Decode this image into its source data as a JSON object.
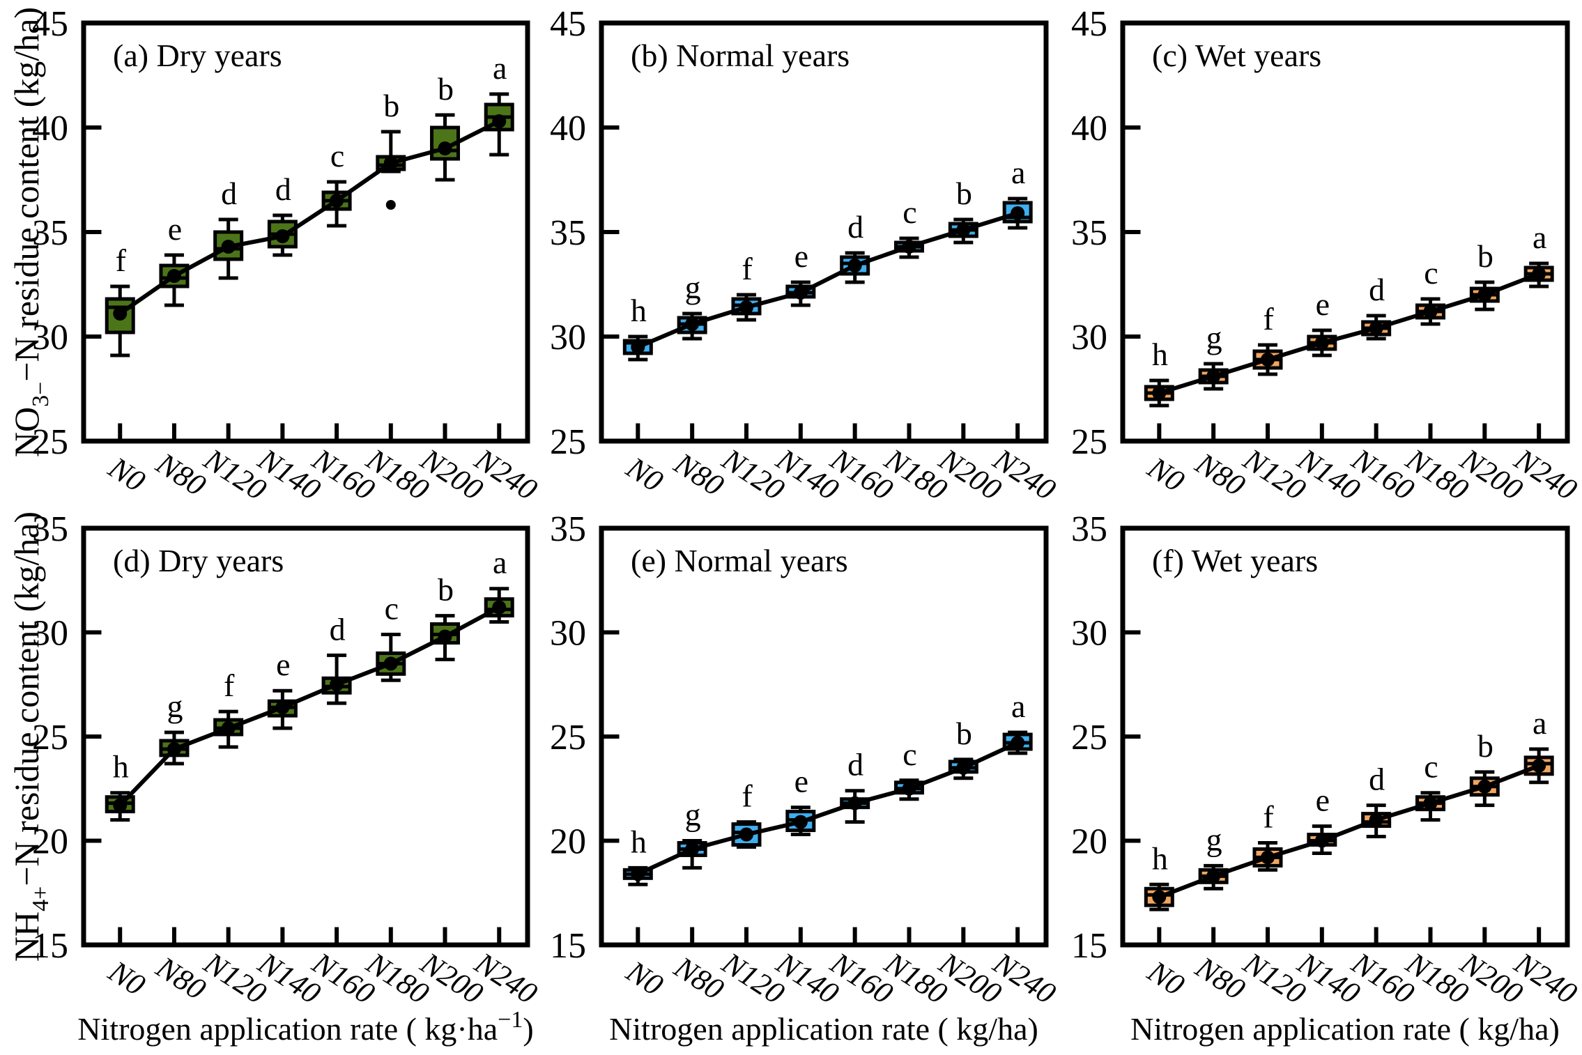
{
  "figure": {
    "background": "#ffffff",
    "categories": [
      "N0",
      "N80",
      "N120",
      "N140",
      "N160",
      "N180",
      "N200",
      "N240"
    ],
    "ink_color": "#000000",
    "group_colors": {
      "dry": "#4C7519",
      "normal": "#3FAFF0",
      "wet": "#F2A55F"
    }
  },
  "chart_data": [
    {
      "id": "a",
      "type": "box",
      "title": "(a) Dry years",
      "box_color": "#4C7519",
      "ylim": [
        25,
        45
      ],
      "yticks": [
        25,
        30,
        35,
        40,
        45
      ],
      "ylabel_parts": [
        {
          "t": "NO"
        },
        {
          "t": "3−",
          "sub": true
        },
        {
          "t": "−N residue content (kg/ha)"
        }
      ],
      "xlabel_parts": null,
      "categories": [
        "N0",
        "N80",
        "N120",
        "N140",
        "N160",
        "N180",
        "N200",
        "N240"
      ],
      "letters": [
        "f",
        "e",
        "d",
        "d",
        "c",
        "b",
        "b",
        "a"
      ],
      "mean": [
        31.1,
        32.9,
        34.3,
        34.8,
        36.5,
        38.3,
        39.0,
        40.3
      ],
      "median": [
        31.4,
        32.8,
        34.2,
        34.9,
        36.5,
        38.2,
        38.9,
        40.5
      ],
      "q1": [
        30.2,
        32.4,
        33.7,
        34.3,
        36.1,
        38.0,
        38.5,
        39.9
      ],
      "q3": [
        31.8,
        33.4,
        35.0,
        35.5,
        36.9,
        38.6,
        40.0,
        41.1
      ],
      "whisker_low": [
        29.1,
        31.5,
        32.8,
        33.9,
        35.3,
        37.9,
        37.5,
        38.7
      ],
      "whisker_high": [
        32.4,
        33.9,
        35.6,
        35.8,
        37.4,
        39.8,
        40.6,
        41.6
      ],
      "outliers": [
        {
          "category": "N180",
          "value": 36.3
        }
      ]
    },
    {
      "id": "b",
      "type": "box",
      "title": "(b) Normal years",
      "box_color": "#3FAFF0",
      "ylim": [
        25,
        45
      ],
      "yticks": [
        25,
        30,
        35,
        40,
        45
      ],
      "ylabel_parts": null,
      "xlabel_parts": null,
      "categories": [
        "N0",
        "N80",
        "N120",
        "N140",
        "N160",
        "N180",
        "N200",
        "N240"
      ],
      "letters": [
        "h",
        "g",
        "f",
        "e",
        "d",
        "c",
        "b",
        "a"
      ],
      "mean": [
        29.5,
        30.6,
        31.4,
        32.1,
        33.4,
        34.3,
        35.1,
        35.9
      ],
      "median": [
        29.7,
        30.6,
        31.5,
        32.1,
        33.5,
        34.3,
        35.1,
        35.7
      ],
      "q1": [
        29.2,
        30.2,
        31.1,
        31.9,
        33.0,
        34.1,
        34.8,
        35.5
      ],
      "q3": [
        29.8,
        30.9,
        31.8,
        32.4,
        33.8,
        34.5,
        35.4,
        36.4
      ],
      "whisker_low": [
        28.9,
        29.9,
        30.8,
        31.5,
        32.6,
        33.8,
        34.5,
        35.2
      ],
      "whisker_high": [
        30.0,
        31.1,
        32.0,
        32.6,
        34.0,
        34.7,
        35.6,
        36.6
      ],
      "outliers": []
    },
    {
      "id": "c",
      "type": "box",
      "title": "(c) Wet years",
      "box_color": "#F2A55F",
      "ylim": [
        25,
        45
      ],
      "yticks": [
        25,
        30,
        35,
        40,
        45
      ],
      "ylabel_parts": null,
      "xlabel_parts": null,
      "categories": [
        "N0",
        "N80",
        "N120",
        "N140",
        "N160",
        "N180",
        "N200",
        "N240"
      ],
      "letters": [
        "h",
        "g",
        "f",
        "e",
        "d",
        "c",
        "b",
        "a"
      ],
      "mean": [
        27.3,
        28.1,
        28.9,
        29.7,
        30.4,
        31.2,
        32.0,
        33.0
      ],
      "median": [
        27.3,
        28.1,
        28.9,
        29.7,
        30.4,
        31.2,
        32.0,
        33.0
      ],
      "q1": [
        27.0,
        27.8,
        28.5,
        29.4,
        30.1,
        30.9,
        31.7,
        32.7
      ],
      "q3": [
        27.6,
        28.4,
        29.3,
        30.0,
        30.7,
        31.5,
        32.3,
        33.3
      ],
      "whisker_low": [
        26.7,
        27.5,
        28.2,
        29.1,
        29.9,
        30.6,
        31.3,
        32.4
      ],
      "whisker_high": [
        27.9,
        28.7,
        29.6,
        30.3,
        31.0,
        31.8,
        32.6,
        33.5
      ],
      "outliers": []
    },
    {
      "id": "d",
      "type": "box",
      "title": "(d) Dry years",
      "box_color": "#4C7519",
      "ylim": [
        15,
        35
      ],
      "yticks": [
        15,
        20,
        25,
        30,
        35
      ],
      "ylabel_parts": [
        {
          "t": "NH"
        },
        {
          "t": "4+",
          "sub": true
        },
        {
          "t": "−N residue content (kg/ha)"
        }
      ],
      "xlabel_parts": [
        {
          "t": "Nitrogen application rate ( kg·ha"
        },
        {
          "t": "−1",
          "sup": true
        },
        {
          "t": ")"
        }
      ],
      "categories": [
        "N0",
        "N80",
        "N120",
        "N140",
        "N160",
        "N180",
        "N200",
        "N240"
      ],
      "letters": [
        "h",
        "g",
        "f",
        "e",
        "d",
        "c",
        "b",
        "a"
      ],
      "mean": [
        21.7,
        24.4,
        25.4,
        26.4,
        27.5,
        28.5,
        29.8,
        31.2
      ],
      "median": [
        21.8,
        24.4,
        25.4,
        26.4,
        27.4,
        28.5,
        29.9,
        31.1
      ],
      "q1": [
        21.4,
        24.1,
        25.1,
        26.0,
        27.1,
        28.0,
        29.5,
        30.8
      ],
      "q3": [
        22.1,
        24.8,
        25.8,
        26.7,
        27.8,
        29.0,
        30.4,
        31.6
      ],
      "whisker_low": [
        21.0,
        23.7,
        24.5,
        25.4,
        26.6,
        27.7,
        28.7,
        30.5
      ],
      "whisker_high": [
        22.3,
        25.2,
        26.2,
        27.2,
        28.9,
        29.9,
        30.8,
        32.1
      ],
      "outliers": []
    },
    {
      "id": "e",
      "type": "box",
      "title": "(e) Normal years",
      "box_color": "#3FAFF0",
      "ylim": [
        15,
        35
      ],
      "yticks": [
        15,
        20,
        25,
        30,
        35
      ],
      "ylabel_parts": null,
      "xlabel_parts": [
        {
          "t": "Nitrogen application rate ( kg/ha)"
        }
      ],
      "categories": [
        "N0",
        "N80",
        "N120",
        "N140",
        "N160",
        "N180",
        "N200",
        "N240"
      ],
      "letters": [
        "h",
        "g",
        "f",
        "e",
        "d",
        "c",
        "b",
        "a"
      ],
      "mean": [
        18.4,
        19.6,
        20.3,
        20.9,
        21.8,
        22.5,
        23.5,
        24.7
      ],
      "median": [
        18.4,
        19.6,
        20.4,
        21.0,
        21.8,
        22.5,
        23.5,
        24.7
      ],
      "q1": [
        18.2,
        19.3,
        19.8,
        20.5,
        21.6,
        22.3,
        23.3,
        24.4
      ],
      "q3": [
        18.6,
        19.9,
        20.8,
        21.4,
        22.0,
        22.8,
        23.8,
        25.1
      ],
      "whisker_low": [
        17.9,
        18.7,
        19.7,
        20.3,
        20.9,
        22.0,
        23.0,
        24.2
      ],
      "whisker_high": [
        18.7,
        20.0,
        20.9,
        21.6,
        22.4,
        22.9,
        23.9,
        25.2
      ],
      "outliers": []
    },
    {
      "id": "f",
      "type": "box",
      "title": "(f) Wet years",
      "box_color": "#F2A55F",
      "ylim": [
        15,
        35
      ],
      "yticks": [
        15,
        20,
        25,
        30,
        35
      ],
      "ylabel_parts": null,
      "xlabel_parts": [
        {
          "t": "Nitrogen application rate ( kg/ha)"
        }
      ],
      "categories": [
        "N0",
        "N80",
        "N120",
        "N140",
        "N160",
        "N180",
        "N200",
        "N240"
      ],
      "letters": [
        "h",
        "g",
        "f",
        "e",
        "d",
        "c",
        "b",
        "a"
      ],
      "mean": [
        17.3,
        18.3,
        19.2,
        20.0,
        21.0,
        21.8,
        22.6,
        23.6
      ],
      "median": [
        17.4,
        18.3,
        19.2,
        20.0,
        20.9,
        21.8,
        22.6,
        23.7
      ],
      "q1": [
        16.9,
        18.0,
        18.8,
        19.8,
        20.7,
        21.5,
        22.2,
        23.2
      ],
      "q3": [
        17.7,
        18.6,
        19.6,
        20.3,
        21.3,
        22.1,
        23.0,
        24.0
      ],
      "whisker_low": [
        16.7,
        17.7,
        18.6,
        19.4,
        20.2,
        21.0,
        21.7,
        22.8
      ],
      "whisker_high": [
        17.9,
        18.8,
        19.9,
        20.7,
        21.7,
        22.3,
        23.3,
        24.4
      ],
      "outliers": []
    }
  ]
}
